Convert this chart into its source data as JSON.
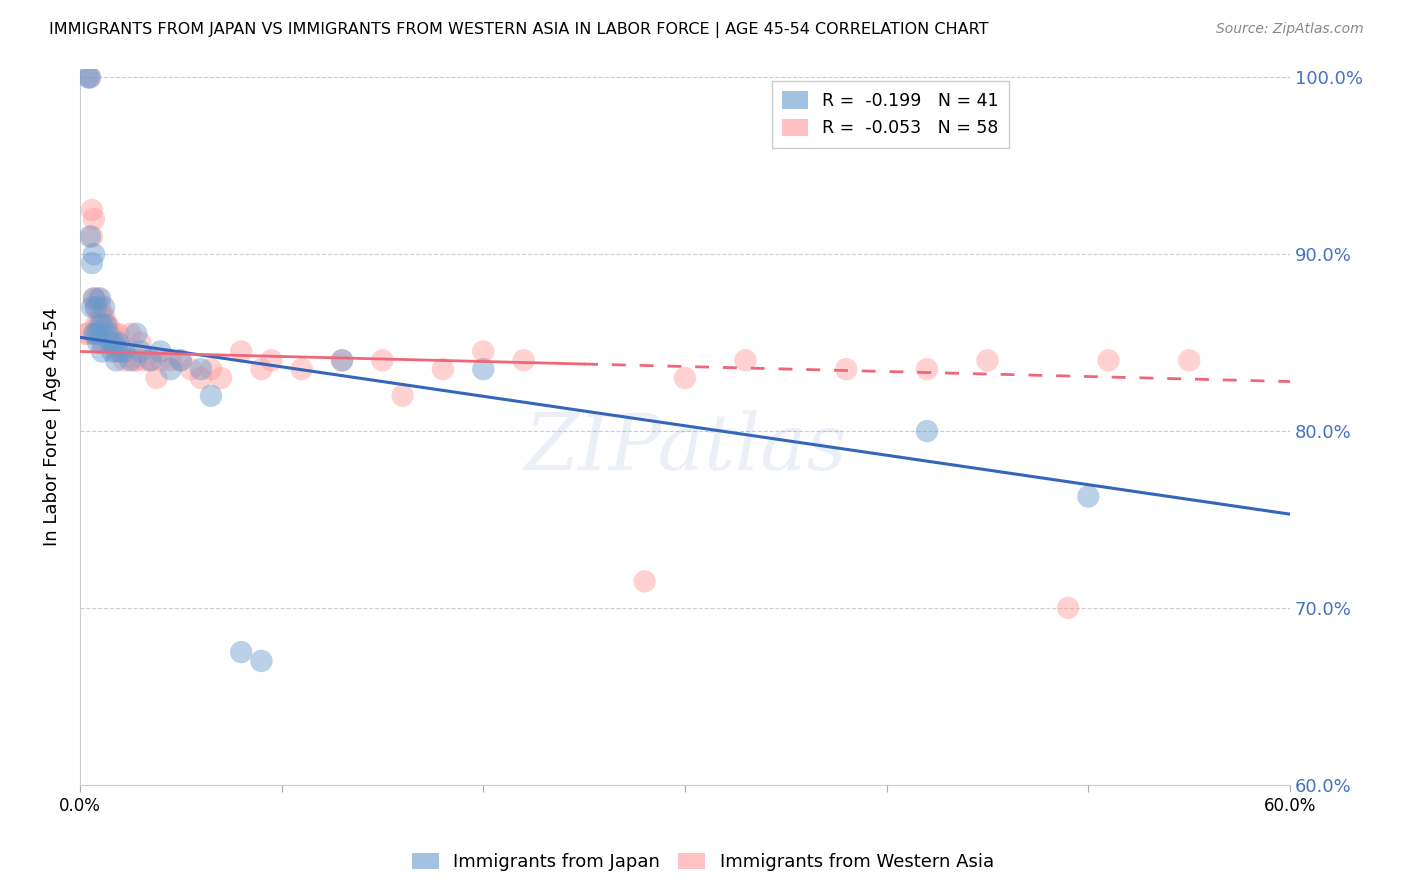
{
  "title": "IMMIGRANTS FROM JAPAN VS IMMIGRANTS FROM WESTERN ASIA IN LABOR FORCE | AGE 45-54 CORRELATION CHART",
  "source": "Source: ZipAtlas.com",
  "ylabel": "In Labor Force | Age 45-54",
  "xlim": [
    0.0,
    0.6
  ],
  "ylim": [
    0.6,
    1.005
  ],
  "yticks": [
    0.6,
    0.7,
    0.8,
    0.9,
    1.0
  ],
  "ytick_labels": [
    "60.0%",
    "70.0%",
    "80.0%",
    "90.0%",
    "100.0%"
  ],
  "xticks": [
    0.0,
    0.1,
    0.2,
    0.3,
    0.4,
    0.5,
    0.6
  ],
  "xtick_labels": [
    "0.0%",
    "",
    "",
    "",
    "",
    "",
    "60.0%"
  ],
  "legend_japan": "R =  -0.199   N = 41",
  "legend_western": "R =  -0.053   N = 58",
  "japan_color": "#6699CC",
  "western_color": "#FF9999",
  "watermark": "ZIPatlas",
  "japan_trend_x": [
    0.0,
    0.6
  ],
  "japan_trend_y": [
    0.853,
    0.753
  ],
  "western_trend_x": [
    0.0,
    0.6
  ],
  "western_trend_y": [
    0.845,
    0.828
  ],
  "japan_x": [
    0.004,
    0.005,
    0.005,
    0.006,
    0.006,
    0.007,
    0.007,
    0.007,
    0.008,
    0.008,
    0.009,
    0.009,
    0.01,
    0.01,
    0.011,
    0.011,
    0.012,
    0.013,
    0.014,
    0.015,
    0.016,
    0.017,
    0.018,
    0.019,
    0.02,
    0.022,
    0.025,
    0.028,
    0.03,
    0.035,
    0.04,
    0.045,
    0.05,
    0.06,
    0.065,
    0.08,
    0.09,
    0.13,
    0.2,
    0.42,
    0.5
  ],
  "japan_y": [
    1.0,
    1.0,
    0.91,
    0.895,
    0.87,
    0.9,
    0.875,
    0.855,
    0.87,
    0.855,
    0.855,
    0.85,
    0.875,
    0.86,
    0.86,
    0.845,
    0.87,
    0.86,
    0.855,
    0.85,
    0.845,
    0.85,
    0.84,
    0.85,
    0.845,
    0.845,
    0.84,
    0.855,
    0.845,
    0.84,
    0.845,
    0.835,
    0.84,
    0.835,
    0.82,
    0.675,
    0.67,
    0.84,
    0.835,
    0.8,
    0.763
  ],
  "western_x": [
    0.003,
    0.004,
    0.005,
    0.006,
    0.006,
    0.007,
    0.007,
    0.008,
    0.008,
    0.009,
    0.009,
    0.01,
    0.01,
    0.011,
    0.011,
    0.012,
    0.013,
    0.014,
    0.015,
    0.016,
    0.017,
    0.018,
    0.019,
    0.02,
    0.022,
    0.025,
    0.027,
    0.028,
    0.03,
    0.032,
    0.035,
    0.038,
    0.04,
    0.045,
    0.05,
    0.055,
    0.06,
    0.065,
    0.07,
    0.08,
    0.09,
    0.095,
    0.11,
    0.13,
    0.15,
    0.16,
    0.18,
    0.2,
    0.22,
    0.28,
    0.3,
    0.33,
    0.38,
    0.42,
    0.45,
    0.49,
    0.51,
    0.55
  ],
  "western_y": [
    0.855,
    0.855,
    1.0,
    0.925,
    0.91,
    0.875,
    0.92,
    0.86,
    0.87,
    0.86,
    0.875,
    0.855,
    0.87,
    0.865,
    0.85,
    0.865,
    0.86,
    0.86,
    0.855,
    0.85,
    0.855,
    0.845,
    0.855,
    0.845,
    0.84,
    0.855,
    0.84,
    0.84,
    0.85,
    0.84,
    0.84,
    0.83,
    0.84,
    0.84,
    0.84,
    0.835,
    0.83,
    0.835,
    0.83,
    0.845,
    0.835,
    0.84,
    0.835,
    0.84,
    0.84,
    0.82,
    0.835,
    0.845,
    0.84,
    0.715,
    0.83,
    0.84,
    0.835,
    0.835,
    0.84,
    0.7,
    0.84,
    0.84
  ]
}
